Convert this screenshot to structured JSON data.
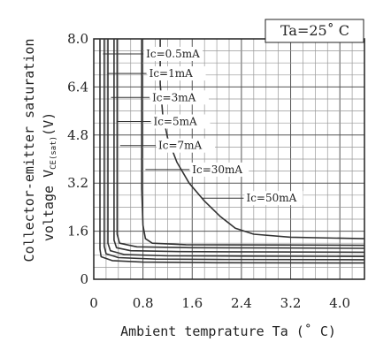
{
  "chart_data": {
    "type": "line",
    "title": "",
    "annotation": "Ta=25˚ C",
    "xlabel": "Ambient temprature Ta (˚ C)",
    "ylabel_line1": "Collector-emitter saturation",
    "ylabel_line2_prefix": "voltage V",
    "ylabel_line2_sub": "CE(sat)",
    "ylabel_line2_suffix": "(V)",
    "xlim": [
      0,
      4.4
    ],
    "ylim": [
      0,
      8.0
    ],
    "x_ticks": [
      0,
      0.8,
      1.6,
      2.4,
      3.2,
      4.0
    ],
    "x_tick_labels": [
      "0",
      "0.8",
      "1.6",
      "2.4",
      "3.2",
      "4.0"
    ],
    "y_ticks": [
      0,
      1.6,
      3.2,
      4.8,
      6.4,
      8.0
    ],
    "y_tick_labels": [
      "0",
      "1.6",
      "3.2",
      "4.8",
      "6.4",
      "8.0"
    ],
    "grid": true,
    "series": [
      {
        "name": "Ic=0.5mA",
        "label_at": [
          0.15,
          7.5
        ],
        "text_at": [
          0.85,
          7.5
        ],
        "points": [
          [
            0.1,
            8.0
          ],
          [
            0.1,
            1.0
          ],
          [
            0.12,
            0.75
          ],
          [
            0.3,
            0.62
          ],
          [
            0.8,
            0.57
          ],
          [
            2.0,
            0.55
          ],
          [
            4.4,
            0.54
          ]
        ]
      },
      {
        "name": "Ic=1mA",
        "label_at": [
          0.22,
          6.85
        ],
        "text_at": [
          0.9,
          6.85
        ],
        "points": [
          [
            0.17,
            8.0
          ],
          [
            0.17,
            1.1
          ],
          [
            0.2,
            0.85
          ],
          [
            0.4,
            0.72
          ],
          [
            1.0,
            0.67
          ],
          [
            2.0,
            0.66
          ],
          [
            4.4,
            0.65
          ]
        ]
      },
      {
        "name": "Ic=3mA",
        "label_at": [
          0.28,
          6.05
        ],
        "text_at": [
          0.95,
          6.05
        ],
        "points": [
          [
            0.23,
            8.0
          ],
          [
            0.23,
            1.2
          ],
          [
            0.27,
            0.95
          ],
          [
            0.5,
            0.82
          ],
          [
            1.2,
            0.78
          ],
          [
            2.4,
            0.77
          ],
          [
            4.4,
            0.76
          ]
        ]
      },
      {
        "name": "Ic=5mA",
        "label_at": [
          0.37,
          5.25
        ],
        "text_at": [
          0.97,
          5.25
        ],
        "points": [
          [
            0.33,
            8.0
          ],
          [
            0.33,
            1.3
          ],
          [
            0.37,
            1.05
          ],
          [
            0.6,
            0.95
          ],
          [
            1.4,
            0.92
          ],
          [
            2.8,
            0.91
          ],
          [
            4.4,
            0.9
          ]
        ]
      },
      {
        "name": "Ic=7mA",
        "label_at": [
          0.43,
          4.45
        ],
        "text_at": [
          1.05,
          4.45
        ],
        "points": [
          [
            0.38,
            8.0
          ],
          [
            0.38,
            1.5
          ],
          [
            0.42,
            1.2
          ],
          [
            0.7,
            1.08
          ],
          [
            1.6,
            1.05
          ],
          [
            3.0,
            1.04
          ],
          [
            4.4,
            1.03
          ]
        ]
      },
      {
        "name": "Ic=30mA",
        "label_at": [
          0.84,
          3.65
        ],
        "text_at": [
          1.6,
          3.65
        ],
        "points": [
          [
            0.78,
            8.0
          ],
          [
            0.78,
            3.0
          ],
          [
            0.8,
            1.8
          ],
          [
            0.84,
            1.35
          ],
          [
            0.95,
            1.2
          ],
          [
            1.5,
            1.15
          ],
          [
            3.0,
            1.14
          ],
          [
            4.4,
            1.13
          ]
        ]
      },
      {
        "name": "Ic=50mA",
        "label_at": [
          1.75,
          2.7
        ],
        "text_at": [
          2.48,
          2.7
        ],
        "points": [
          [
            1.08,
            8.0
          ],
          [
            1.08,
            6.5
          ],
          [
            1.12,
            5.5
          ],
          [
            1.2,
            4.7
          ],
          [
            1.35,
            3.9
          ],
          [
            1.55,
            3.2
          ],
          [
            1.8,
            2.6
          ],
          [
            2.05,
            2.1
          ],
          [
            2.3,
            1.7
          ],
          [
            2.6,
            1.5
          ],
          [
            3.2,
            1.4
          ],
          [
            4.4,
            1.35
          ]
        ]
      }
    ]
  }
}
